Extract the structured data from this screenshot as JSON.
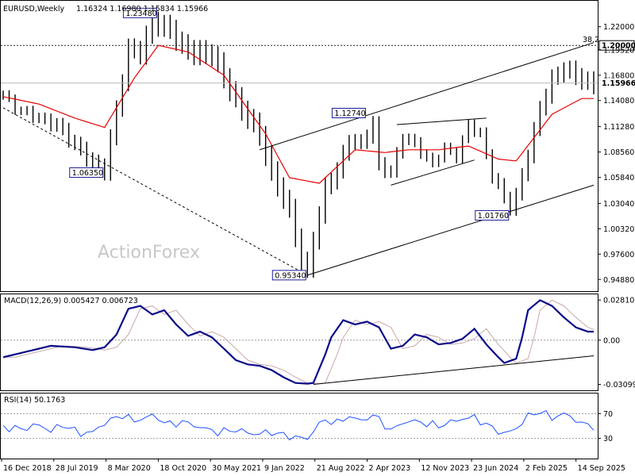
{
  "window": {
    "symbol_label": "EURUSD,Weekly",
    "ohlc_label": "1.16324 1.16980 1.15834 1.15966"
  },
  "watermark": "ActionForex",
  "colors": {
    "price_bars": "#000000",
    "ma_line": "#e60000",
    "macd_line": "#0a0a8a",
    "macd_signal": "#c8a8a8",
    "rsi_line": "#1e50ff",
    "grid_dotted": "#9a9a9a",
    "level_line": "#222222",
    "annotation_border": "#1c1c9a"
  },
  "chart_data": [
    {
      "type": "bar",
      "title": "EURUSD,Weekly",
      "ylim": [
        0.9405,
        1.247
      ],
      "y_ticks": [
        "1.22000",
        "1.19520",
        "1.16800",
        "1.14080",
        "1.11280",
        "1.08560",
        "1.05840",
        "1.03040",
        "1.00320",
        "0.97600",
        "0.94880"
      ],
      "x_ticks": [
        "16 Dec 2018",
        "28 Jul 2019",
        "8 Mar 2020",
        "18 Oct 2020",
        "30 May 2021",
        "9 Jan 2022",
        "21 Aug 2022",
        "2 Apr 2023",
        "12 Nov 2023",
        "23 Jun 2024",
        "2 Feb 2025",
        "14 Sep 2025"
      ],
      "price_labels": [
        {
          "text": "1.23480",
          "value": 1.2348
        },
        {
          "text": "1.06350",
          "value": 1.0635
        },
        {
          "text": "1.12740",
          "value": 1.1274
        },
        {
          "text": "1.01760",
          "value": 1.0176
        },
        {
          "text": "0.95340",
          "value": 0.9534
        }
      ],
      "level_lines": [
        {
          "label": "1.20000",
          "value": 1.2,
          "fib": "38.2",
          "style": "dotted"
        },
        {
          "label": "1.15966",
          "value": 1.15966,
          "style": "solid-gray",
          "current": true
        }
      ],
      "series_ma_anchors": [
        [
          0,
          1.145
        ],
        [
          6,
          1.137
        ],
        [
          12,
          1.122
        ],
        [
          17,
          1.112
        ],
        [
          22,
          1.165
        ],
        [
          26,
          1.2
        ],
        [
          31,
          1.193
        ],
        [
          37,
          1.168
        ],
        [
          44,
          1.105
        ],
        [
          48,
          1.058
        ],
        [
          53,
          1.052
        ],
        [
          59,
          1.088
        ],
        [
          64,
          1.085
        ],
        [
          68,
          1.088
        ],
        [
          73,
          1.088
        ],
        [
          78,
          1.092
        ],
        [
          83,
          1.078
        ],
        [
          86,
          1.076
        ],
        [
          92,
          1.126
        ],
        [
          97,
          1.143
        ]
      ],
      "price_anchors": [
        [
          0,
          1.147
        ],
        [
          2,
          1.135
        ],
        [
          6,
          1.122
        ],
        [
          9,
          1.112
        ],
        [
          11,
          1.1
        ],
        [
          15,
          1.075
        ],
        [
          17,
          1.068
        ],
        [
          19,
          1.13
        ],
        [
          21,
          1.195
        ],
        [
          23,
          1.19
        ],
        [
          25,
          1.227
        ],
        [
          28,
          1.218
        ],
        [
          30,
          1.2
        ],
        [
          32,
          1.19
        ],
        [
          35,
          1.19
        ],
        [
          37,
          1.165
        ],
        [
          40,
          1.133
        ],
        [
          43,
          1.105
        ],
        [
          45,
          1.06
        ],
        [
          48,
          1.022
        ],
        [
          50,
          0.97
        ],
        [
          51,
          0.958
        ],
        [
          52,
          0.995
        ],
        [
          54,
          1.047
        ],
        [
          56,
          1.065
        ],
        [
          58,
          1.097
        ],
        [
          60,
          1.092
        ],
        [
          62,
          1.118
        ],
        [
          63,
          1.072
        ],
        [
          65,
          1.065
        ],
        [
          67,
          1.103
        ],
        [
          69,
          1.092
        ],
        [
          72,
          1.071
        ],
        [
          74,
          1.09
        ],
        [
          76,
          1.083
        ],
        [
          78,
          1.115
        ],
        [
          80,
          1.105
        ],
        [
          82,
          1.058
        ],
        [
          84,
          1.035
        ],
        [
          85,
          1.027
        ],
        [
          86,
          1.038
        ],
        [
          88,
          1.085
        ],
        [
          90,
          1.135
        ],
        [
          92,
          1.162
        ],
        [
          94,
          1.175
        ],
        [
          96,
          1.165
        ],
        [
          98,
          1.16
        ]
      ],
      "trendlines": [
        {
          "from": [
            0,
            1.133
          ],
          "to": [
            51,
            0.9534
          ],
          "style": "dashed"
        },
        {
          "from": [
            51,
            0.9534
          ],
          "to": [
            99,
            1.05
          ],
          "style": "solid"
        },
        {
          "from": [
            43,
            1.088
          ],
          "to": [
            99,
            1.203
          ],
          "style": "solid"
        },
        {
          "from": [
            66,
            1.115
          ],
          "to": [
            81,
            1.122
          ],
          "style": "solid"
        },
        {
          "from": [
            65,
            1.05
          ],
          "to": [
            79,
            1.077
          ],
          "style": "solid"
        }
      ]
    },
    {
      "type": "line",
      "title": "MACD(12,26,9) 0.005427 0.006723",
      "ylim": [
        -0.0335,
        0.031
      ],
      "y_ticks": [
        "0.028106",
        "0.00",
        "-0.03099"
      ],
      "series_anchors": [
        [
          0,
          -0.012
        ],
        [
          4,
          -0.008
        ],
        [
          8,
          -0.004
        ],
        [
          12,
          -0.005
        ],
        [
          15,
          -0.007
        ],
        [
          17,
          -0.005
        ],
        [
          19,
          0.004
        ],
        [
          21,
          0.022
        ],
        [
          23,
          0.024
        ],
        [
          25,
          0.018
        ],
        [
          27,
          0.021
        ],
        [
          29,
          0.011
        ],
        [
          31,
          0.003
        ],
        [
          33,
          0.006
        ],
        [
          35,
          0.002
        ],
        [
          37,
          -0.006
        ],
        [
          39,
          -0.014
        ],
        [
          41,
          -0.017
        ],
        [
          43,
          -0.018
        ],
        [
          45,
          -0.021
        ],
        [
          47,
          -0.026
        ],
        [
          49,
          -0.03
        ],
        [
          51,
          -0.0305
        ],
        [
          52,
          -0.03
        ],
        [
          54,
          -0.01
        ],
        [
          55,
          0.002
        ],
        [
          57,
          0.014
        ],
        [
          59,
          0.011
        ],
        [
          61,
          0.013
        ],
        [
          63,
          0.009
        ],
        [
          65,
          -0.006
        ],
        [
          67,
          -0.004
        ],
        [
          69,
          0.004
        ],
        [
          71,
          0.002
        ],
        [
          73,
          -0.003
        ],
        [
          75,
          -0.002
        ],
        [
          77,
          0.001
        ],
        [
          79,
          0.008
        ],
        [
          81,
          -0.003
        ],
        [
          83,
          -0.012
        ],
        [
          84,
          -0.016
        ],
        [
          86,
          -0.013
        ],
        [
          87,
          0.002
        ],
        [
          88,
          0.021
        ],
        [
          90,
          0.028
        ],
        [
          92,
          0.024
        ],
        [
          94,
          0.016
        ],
        [
          96,
          0.009
        ],
        [
          98,
          0.006
        ]
      ],
      "support_line": {
        "from": [
          52,
          -0.031
        ],
        "to": [
          99,
          -0.011
        ]
      }
    },
    {
      "type": "line",
      "title": "RSI(14) 50.1763",
      "ylim": [
        0,
        100
      ],
      "y_ticks": [
        "70",
        "30"
      ],
      "series_anchors": [
        [
          0,
          48
        ],
        [
          3,
          45
        ],
        [
          6,
          52
        ],
        [
          8,
          42
        ],
        [
          10,
          52
        ],
        [
          13,
          38
        ],
        [
          15,
          40
        ],
        [
          17,
          55
        ],
        [
          20,
          68
        ],
        [
          22,
          58
        ],
        [
          25,
          67
        ],
        [
          28,
          52
        ],
        [
          30,
          57
        ],
        [
          33,
          48
        ],
        [
          36,
          40
        ],
        [
          39,
          44
        ],
        [
          42,
          37
        ],
        [
          45,
          40
        ],
        [
          48,
          33
        ],
        [
          50,
          31
        ],
        [
          51,
          28
        ],
        [
          52,
          44
        ],
        [
          54,
          60
        ],
        [
          56,
          55
        ],
        [
          58,
          66
        ],
        [
          60,
          58
        ],
        [
          62,
          68
        ],
        [
          64,
          52
        ],
        [
          65,
          42
        ],
        [
          67,
          56
        ],
        [
          69,
          58
        ],
        [
          71,
          54
        ],
        [
          73,
          50
        ],
        [
          75,
          56
        ],
        [
          77,
          62
        ],
        [
          79,
          64
        ],
        [
          81,
          52
        ],
        [
          83,
          42
        ],
        [
          84,
          37
        ],
        [
          86,
          46
        ],
        [
          88,
          66
        ],
        [
          90,
          74
        ],
        [
          92,
          63
        ],
        [
          94,
          70
        ],
        [
          96,
          60
        ],
        [
          98,
          50
        ]
      ]
    }
  ]
}
